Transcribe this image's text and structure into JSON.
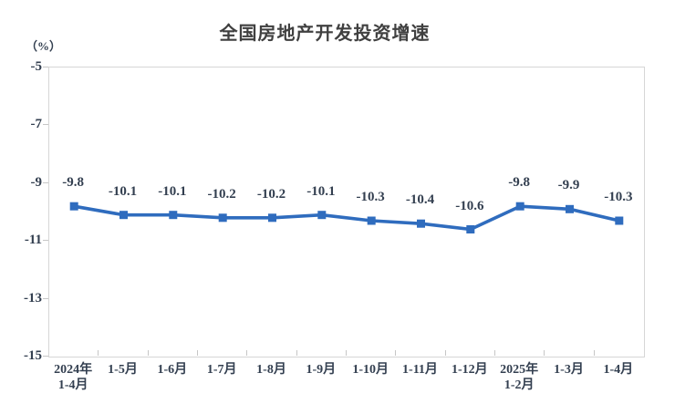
{
  "chart_data": {
    "type": "line",
    "title": "全国房地产开发投资增速",
    "unit_label": "（%）",
    "categories": [
      [
        "2024年",
        "1-4月"
      ],
      [
        "1-5月"
      ],
      [
        "1-6月"
      ],
      [
        "1-7月"
      ],
      [
        "1-8月"
      ],
      [
        "1-9月"
      ],
      [
        "1-10月"
      ],
      [
        "1-11月"
      ],
      [
        "1-12月"
      ],
      [
        "2025年",
        "1-2月"
      ],
      [
        "1-3月"
      ],
      [
        "1-4月"
      ]
    ],
    "values": [
      -9.8,
      -10.1,
      -10.1,
      -10.2,
      -10.2,
      -10.1,
      -10.3,
      -10.4,
      -10.6,
      -9.8,
      -9.9,
      -10.3
    ],
    "data_labels": [
      "-9.8",
      "-10.1",
      "-10.1",
      "-10.2",
      "-10.2",
      "-10.1",
      "-10.3",
      "-10.4",
      "-10.6",
      "-9.8",
      "-9.9",
      "-10.3"
    ],
    "ylim": [
      -15,
      -5
    ],
    "yticks": [
      -5,
      -7,
      -9,
      -11,
      -13,
      -15
    ],
    "grid": false,
    "legend": "none",
    "marker": "square",
    "colors": {
      "line": "#2f6cbe",
      "marker": "#2f6cbe",
      "axis_border": "#d6d6d6",
      "tick": "#c6c6c6",
      "label_text": "#333f50",
      "title_text": "#404040"
    }
  }
}
